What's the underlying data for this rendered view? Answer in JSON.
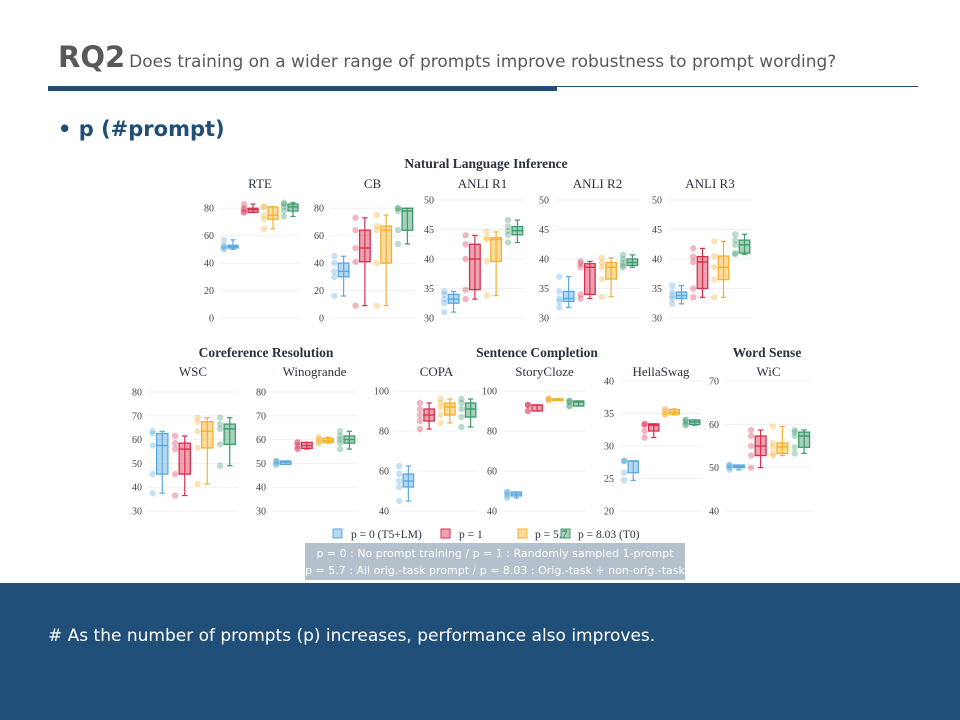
{
  "slide": {
    "rq_label": "RQ2",
    "question": "Does training on a wider range of prompts improve robustness to prompt wording?",
    "bullet": "• p (#prompt)",
    "note_line1": "p = 0 : No prompt training / p = 1 : Randomly sampled 1-prompt",
    "note_line2": "p = 5.7 : All orig.-task prompt / p = 8.03 : Orig.-task + non-orig.-task",
    "conclusion": "# As the number of prompts (p) increases, performance also improves.",
    "colors": {
      "accent": "#1f4e79",
      "note_bg": "#b4c0cc"
    }
  },
  "chart_data": {
    "type": "box",
    "groups": [
      "Natural Language Inference",
      "Coreference Resolution",
      "Sentence Completion",
      "Word Sense"
    ],
    "series": [
      {
        "name": "p = 0 (T5+LM)",
        "color": "#5aa9de"
      },
      {
        "name": "p = 1",
        "color": "#d6304f"
      },
      {
        "name": "p = 5.7",
        "color": "#f5b02e"
      },
      {
        "name": "p = 8.03 (T0)",
        "color": "#3d9a6b"
      }
    ],
    "box_format": [
      "min",
      "q1",
      "median",
      "q3",
      "max"
    ],
    "panels": [
      {
        "title": "RTE",
        "group": 0,
        "ylim": [
          0,
          86
        ],
        "ticks": [
          0,
          20,
          40,
          60,
          80
        ],
        "boxes": [
          [
            50,
            51,
            52,
            53,
            57
          ],
          [
            77,
            77,
            79,
            80,
            83
          ],
          [
            65,
            72,
            75,
            81,
            81
          ],
          [
            74,
            78,
            81,
            83,
            84
          ]
        ]
      },
      {
        "title": "CB",
        "group": 0,
        "ylim": [
          0,
          86
        ],
        "ticks": [
          0,
          20,
          40,
          60,
          80
        ],
        "boxes": [
          [
            16,
            30,
            34,
            40,
            45
          ],
          [
            9,
            41,
            51,
            64,
            73
          ],
          [
            9,
            40,
            64,
            67,
            75
          ],
          [
            54,
            64,
            78,
            80,
            80
          ]
        ]
      },
      {
        "title": "ANLI R1",
        "group": 0,
        "ylim": [
          30,
          50
        ],
        "ticks": [
          30,
          35,
          40,
          45,
          50
        ],
        "boxes": [
          [
            31,
            32.5,
            33.2,
            34,
            34.5
          ],
          [
            33.2,
            34.8,
            40,
            42.5,
            44
          ],
          [
            33.8,
            39.6,
            43.3,
            43.6,
            44.6
          ],
          [
            42.8,
            44.1,
            44.8,
            45.5,
            46.6
          ]
        ]
      },
      {
        "title": "ANLI R2",
        "group": 0,
        "ylim": [
          30,
          50
        ],
        "ticks": [
          30,
          35,
          40,
          45,
          50
        ],
        "boxes": [
          [
            31.8,
            32.8,
            33.3,
            34.5,
            37
          ],
          [
            33.3,
            34,
            38.6,
            39.2,
            39.6
          ],
          [
            33.6,
            36.6,
            38.6,
            39.4,
            40.2
          ],
          [
            38.6,
            38.9,
            39.4,
            40,
            40.7
          ]
        ]
      },
      {
        "title": "ANLI R3",
        "group": 0,
        "ylim": [
          30,
          50
        ],
        "ticks": [
          30,
          35,
          40,
          45,
          50
        ],
        "boxes": [
          [
            32.4,
            33.3,
            33.8,
            34.4,
            35.5
          ],
          [
            33.5,
            35,
            39.5,
            40.4,
            41.8
          ],
          [
            33.5,
            36.5,
            38.6,
            40.5,
            43
          ],
          [
            40.8,
            41,
            42.4,
            43.2,
            44.2
          ]
        ]
      },
      {
        "title": "WSC",
        "group": 1,
        "ylim": [
          30,
          84.6
        ],
        "ticks": [
          30,
          40,
          50,
          60,
          70,
          80
        ],
        "boxes": [
          [
            37.5,
            45.5,
            57.5,
            62.5,
            63.5
          ],
          [
            36.5,
            45.5,
            56,
            58.5,
            61.5
          ],
          [
            41.3,
            56.5,
            63.5,
            67.5,
            69.2
          ],
          [
            49,
            58,
            64.5,
            66.5,
            69.2
          ]
        ]
      },
      {
        "title": "Winogrande",
        "group": 1,
        "ylim": [
          30,
          84.6
        ],
        "ticks": [
          30,
          40,
          50,
          60,
          70,
          80
        ],
        "boxes": [
          [
            49.5,
            49.6,
            50.5,
            51,
            51
          ],
          [
            56,
            56.3,
            57.5,
            58.8,
            58.8
          ],
          [
            58.5,
            58.8,
            59.5,
            60.5,
            61
          ],
          [
            56,
            58.5,
            60,
            61.5,
            63.5
          ]
        ]
      },
      {
        "title": "COPA",
        "group": 2,
        "ylim": [
          40,
          105
        ],
        "ticks": [
          40,
          60,
          80,
          100
        ],
        "boxes": [
          [
            45,
            52,
            55,
            58.5,
            62.5
          ],
          [
            81,
            85,
            88,
            91,
            94
          ],
          [
            84,
            88,
            92,
            94,
            96
          ],
          [
            82,
            87,
            91,
            94,
            96
          ]
        ]
      },
      {
        "title": "StoryCloze",
        "group": 2,
        "ylim": [
          40,
          105
        ],
        "ticks": [
          40,
          60,
          80,
          100
        ],
        "boxes": [
          [
            46.5,
            47.5,
            48.5,
            49.5,
            49.5
          ],
          [
            90,
            90,
            93,
            93,
            93
          ],
          [
            95.5,
            95.5,
            96,
            96,
            96.2
          ],
          [
            92.5,
            92.5,
            94.5,
            95,
            95
          ]
        ]
      },
      {
        "title": "HellaSwag",
        "group": 2,
        "ylim": [
          20,
          40
        ],
        "ticks": [
          20,
          25,
          30,
          35,
          40
        ],
        "boxes": [
          [
            24.7,
            25.9,
            27.7,
            27.7,
            27.7
          ],
          [
            31.3,
            32.3,
            33.2,
            33.4,
            33.4
          ],
          [
            34.8,
            34.9,
            35.2,
            35.6,
            35.7
          ],
          [
            33.2,
            33.3,
            33.7,
            34,
            34
          ]
        ]
      },
      {
        "title": "WiC",
        "group": 3,
        "ylim": [
          40,
          70
        ],
        "ticks": [
          40,
          50,
          60,
          70
        ],
        "boxes": [
          [
            49.5,
            50,
            50.3,
            50.6,
            50.6
          ],
          [
            50,
            52.8,
            55,
            57.3,
            58.7
          ],
          [
            52.8,
            53.3,
            54.8,
            55.7,
            59.5
          ],
          [
            53.3,
            54.7,
            57.3,
            58.2,
            58.7
          ]
        ]
      }
    ]
  }
}
